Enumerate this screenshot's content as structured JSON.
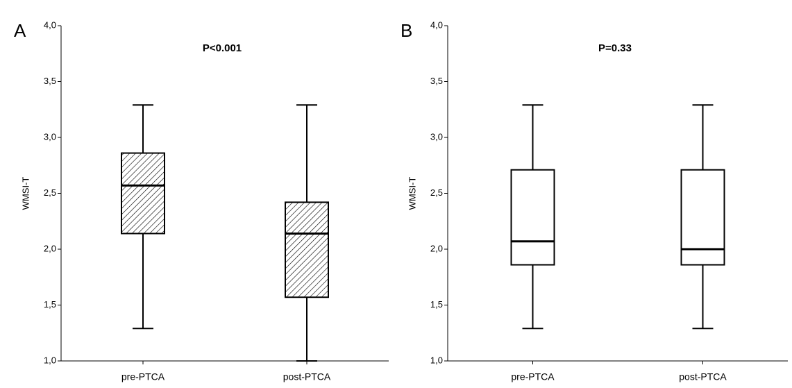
{
  "chart_data": [
    {
      "type": "box",
      "panel": "A",
      "title": "P<0.001",
      "ylabel": "WMSI-T",
      "fill": "hatch",
      "color": "#000000",
      "categories": [
        "pre-PTCA",
        "post-PTCA"
      ],
      "boxes": [
        {
          "min": 1.29,
          "q1": 2.14,
          "median": 2.57,
          "q3": 2.86,
          "max": 3.29
        },
        {
          "min": 1.0,
          "q1": 1.57,
          "median": 2.14,
          "q3": 2.42,
          "max": 3.29
        }
      ],
      "ylim": [
        1,
        4
      ],
      "yticks": [
        {
          "value": 1,
          "label": "1,0"
        },
        {
          "value": 1.5,
          "label": "1,5"
        },
        {
          "value": 2,
          "label": "2,0"
        },
        {
          "value": 2.5,
          "label": "2,5"
        },
        {
          "value": 3,
          "label": "3,0"
        },
        {
          "value": 3.5,
          "label": "3,5"
        },
        {
          "value": 4,
          "label": "4,0"
        }
      ]
    },
    {
      "type": "box",
      "panel": "B",
      "title": "P=0.33",
      "ylabel": "WMSI-T",
      "fill": "none",
      "color": "#000000",
      "categories": [
        "pre-PTCA",
        "post-PTCA"
      ],
      "boxes": [
        {
          "min": 1.29,
          "q1": 1.86,
          "median": 2.07,
          "q3": 2.71,
          "max": 3.29
        },
        {
          "min": 1.29,
          "q1": 1.86,
          "median": 2.0,
          "q3": 2.71,
          "max": 3.29
        }
      ],
      "ylim": [
        1,
        4
      ],
      "yticks": [
        {
          "value": 1,
          "label": "1,0"
        },
        {
          "value": 1.5,
          "label": "1,5"
        },
        {
          "value": 2,
          "label": "2,0"
        },
        {
          "value": 2.5,
          "label": "2,5"
        },
        {
          "value": 3,
          "label": "3,0"
        },
        {
          "value": 3.5,
          "label": "3,5"
        },
        {
          "value": 4,
          "label": "4,0"
        }
      ]
    }
  ]
}
